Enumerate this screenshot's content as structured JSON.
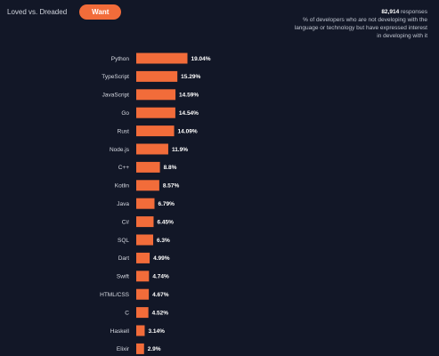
{
  "toolbar": {
    "tab_label": "Loved vs. Dreaded",
    "want_label": "Want"
  },
  "responses": {
    "count": "82,914",
    "suffix": " responses",
    "description": "% of developers who are not developing with the language or technology but have expressed interest in developing with it"
  },
  "colors": {
    "background": "#121727",
    "bar": "#f26c3a",
    "button": "#f26c3a"
  },
  "chart_data": {
    "type": "bar",
    "orientation": "horizontal",
    "categories": [
      "Python",
      "TypeScript",
      "JavaScript",
      "Go",
      "Rust",
      "Node.js",
      "C++",
      "Kotlin",
      "Java",
      "C#",
      "SQL",
      "Dart",
      "Swift",
      "HTML/CSS",
      "C",
      "Haskell",
      "Elixir"
    ],
    "values": [
      19.04,
      15.29,
      14.59,
      14.54,
      14.09,
      11.9,
      8.8,
      8.57,
      6.79,
      6.45,
      6.3,
      4.99,
      4.74,
      4.67,
      4.52,
      3.14,
      2.9
    ],
    "value_labels": [
      "19.04%",
      "15.29%",
      "14.59%",
      "14.54%",
      "14.09%",
      "11.9%",
      "8.8%",
      "8.57%",
      "6.79%",
      "6.45%",
      "6.3%",
      "4.99%",
      "4.74%",
      "4.67%",
      "4.52%",
      "3.14%",
      "2.9%"
    ],
    "xlim": [
      0,
      20
    ],
    "grid": false,
    "legend": "none"
  }
}
